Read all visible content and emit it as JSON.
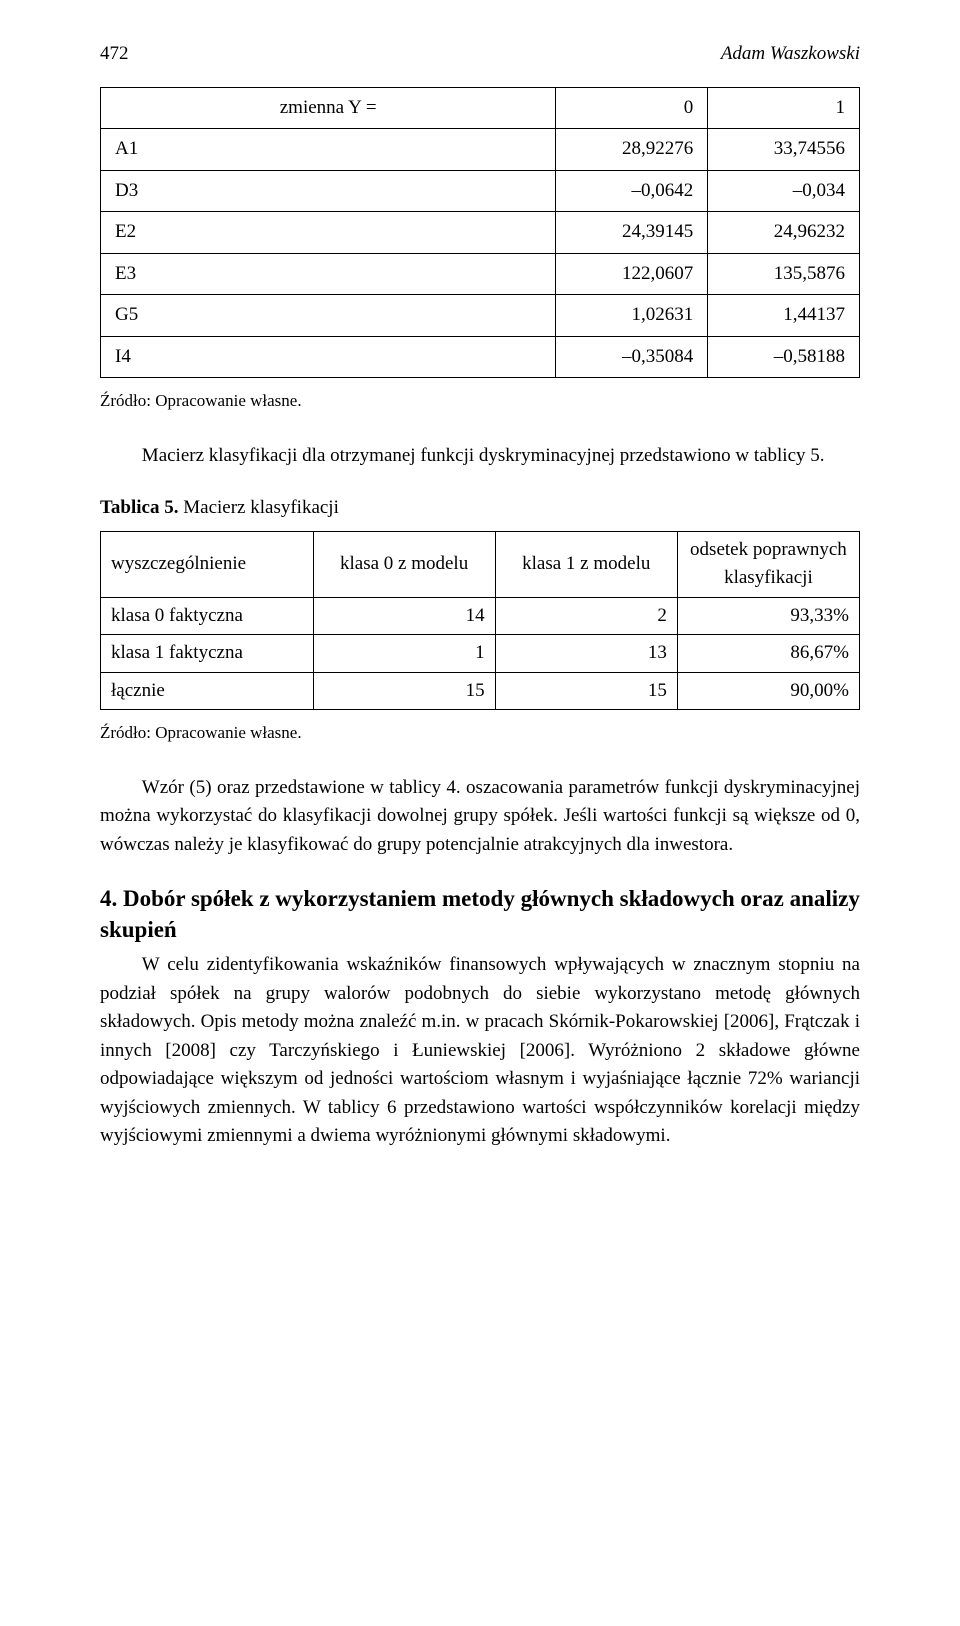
{
  "header": {
    "page_number": "472",
    "author": "Adam Waszkowski"
  },
  "table1": {
    "header_col0": "zmienna Y =",
    "header_col1": "0",
    "header_col2": "1",
    "rows": [
      {
        "label": "A1",
        "v0": "28,92276",
        "v1": "33,74556"
      },
      {
        "label": "D3",
        "v0": "–0,0642",
        "v1": "–0,034"
      },
      {
        "label": "E2",
        "v0": "24,39145",
        "v1": "24,96232"
      },
      {
        "label": "E3",
        "v0": "122,0607",
        "v1": "135,5876"
      },
      {
        "label": "G5",
        "v0": "1,02631",
        "v1": "1,44137"
      },
      {
        "label": "I4",
        "v0": "–0,35084",
        "v1": "–0,58188"
      }
    ]
  },
  "source1": "Źródło: Opracowanie własne.",
  "para1": "Macierz klasyfikacji dla otrzymanej funkcji dyskryminacyjnej przedstawiono w tablicy 5.",
  "table2_caption_bold": "Tablica 5.",
  "table2_caption_rest": " Macierz klasyfikacji",
  "table2": {
    "headers": {
      "c0": "wyszczególnienie",
      "c1": "klasa 0 z modelu",
      "c2": "klasa 1 z modelu",
      "c3": "odsetek poprawnych klasyfikacji"
    },
    "rows": [
      {
        "label": "klasa 0 faktyczna",
        "v1": "14",
        "v2": "2",
        "v3": "93,33%"
      },
      {
        "label": "klasa 1 faktyczna",
        "v1": "1",
        "v2": "13",
        "v3": "86,67%"
      },
      {
        "label": "łącznie",
        "v1": "15",
        "v2": "15",
        "v3": "90,00%"
      }
    ]
  },
  "source2": "Źródło: Opracowanie własne.",
  "para2": "Wzór (5) oraz przedstawione w tablicy 4. oszacowania parametrów funkcji dyskryminacyjnej można wykorzystać do klasyfikacji dowolnej grupy spółek. Jeśli wartości funkcji są większe od 0, wówczas należy je klasyfikować do grupy potencjalnie atrakcyjnych dla inwestora.",
  "section_heading": "4. Dobór spółek z wykorzystaniem metody głównych składowych oraz analizy skupień",
  "section_para": "W celu zidentyfikowania wskaźników finansowych wpływających w znacznym stopniu na podział spółek na grupy walorów podobnych do siebie wykorzystano metodę głównych składowych. Opis metody można znaleźć m.in. w pracach Skórnik-Pokarowskiej [2006], Frątczak i innych [2008] czy Tarczyńskiego i Łuniewskiej [2006]. Wyróżniono 2 składowe główne odpowiadające większym od jedności wartościom własnym i wyjaśniające łącznie 72% wariancji wyjściowych zmiennych. W tablicy 6 przedstawiono wartości współczynników korelacji między wyjściowymi zmiennymi a dwiema wyróżnionymi głównymi składowymi."
}
